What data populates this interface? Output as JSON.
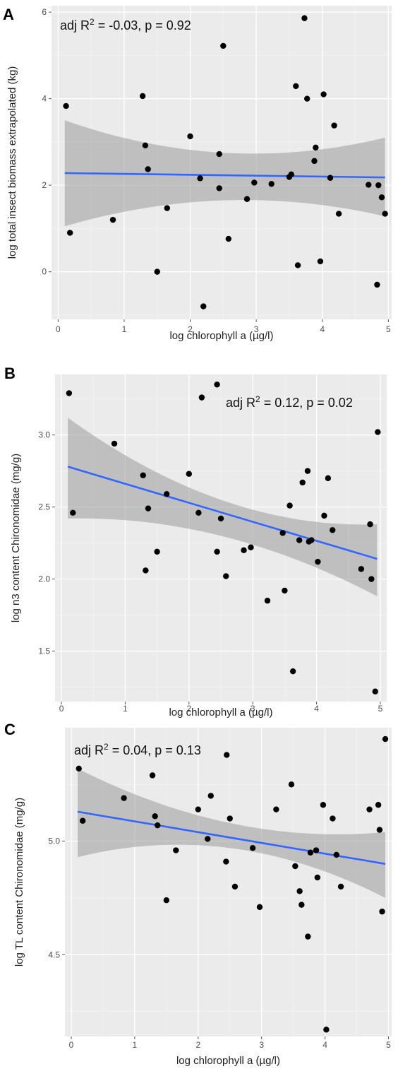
{
  "chart_data": [
    {
      "type": "scatter",
      "panel": "A",
      "xlabel": "log chlorophyll a (µg/l)",
      "ylabel": "log total insect biomass extrapolated (kg)",
      "xlim": [
        -0.1,
        5.05
      ],
      "ylim": [
        -1.1,
        6.15
      ],
      "xticks": [
        0,
        1,
        2,
        3,
        4,
        5
      ],
      "yticks": [
        0,
        2,
        4,
        6
      ],
      "annotation": {
        "prefix": "adj R",
        "sup": "2",
        "suffix": " = -0.03, p = 0.92",
        "position": "top-left"
      },
      "grid": true,
      "points": [
        [
          0.12,
          3.83
        ],
        [
          0.18,
          0.9
        ],
        [
          0.83,
          1.2
        ],
        [
          1.28,
          4.06
        ],
        [
          1.32,
          2.92
        ],
        [
          1.36,
          2.37
        ],
        [
          1.5,
          0.0
        ],
        [
          1.65,
          1.47
        ],
        [
          2.0,
          3.13
        ],
        [
          2.15,
          2.16
        ],
        [
          2.2,
          -0.8
        ],
        [
          2.44,
          2.72
        ],
        [
          2.44,
          1.93
        ],
        [
          2.5,
          5.22
        ],
        [
          2.58,
          0.76
        ],
        [
          2.86,
          1.68
        ],
        [
          2.97,
          2.06
        ],
        [
          3.23,
          2.03
        ],
        [
          3.5,
          2.19
        ],
        [
          3.53,
          2.25
        ],
        [
          3.6,
          4.29
        ],
        [
          3.63,
          0.15
        ],
        [
          3.73,
          5.86
        ],
        [
          3.77,
          4.0
        ],
        [
          3.88,
          2.56
        ],
        [
          3.9,
          2.87
        ],
        [
          3.97,
          0.24
        ],
        [
          4.02,
          4.1
        ],
        [
          4.12,
          2.17
        ],
        [
          4.18,
          3.38
        ],
        [
          4.25,
          1.34
        ],
        [
          4.7,
          2.01
        ],
        [
          4.83,
          -0.3
        ],
        [
          4.85,
          2.0
        ],
        [
          4.9,
          1.72
        ],
        [
          4.95,
          1.34
        ]
      ],
      "fit": {
        "x": [
          0.1,
          4.95
        ],
        "y": [
          2.28,
          2.18
        ],
        "band_upper": [
          3.5,
          2.75,
          3.1
        ],
        "band_lower": [
          1.05,
          1.65,
          1.28
        ],
        "band_x": [
          0.1,
          2.5,
          4.95
        ]
      }
    },
    {
      "type": "scatter",
      "panel": "B",
      "xlabel": "log chlorophyll a (µg/l)",
      "ylabel": "log n3 content Chironomidae (mg/g)",
      "xlim": [
        -0.1,
        5.1
      ],
      "ylim": [
        1.15,
        3.42
      ],
      "xticks": [
        0,
        1,
        2,
        3,
        4,
        5
      ],
      "yticks": [
        1.5,
        2.0,
        2.5,
        3.0
      ],
      "annotation": {
        "prefix": "adj R",
        "sup": "2",
        "suffix": " = 0.12, p = 0.02",
        "position": "top-right"
      },
      "grid": true,
      "points": [
        [
          0.12,
          3.29
        ],
        [
          0.18,
          2.46
        ],
        [
          0.83,
          2.94
        ],
        [
          1.28,
          2.72
        ],
        [
          1.32,
          2.06
        ],
        [
          1.36,
          2.49
        ],
        [
          1.5,
          2.19
        ],
        [
          1.65,
          2.59
        ],
        [
          2.0,
          2.73
        ],
        [
          2.15,
          2.46
        ],
        [
          2.2,
          3.26
        ],
        [
          2.44,
          2.19
        ],
        [
          2.44,
          3.35
        ],
        [
          2.5,
          2.42
        ],
        [
          2.58,
          2.02
        ],
        [
          2.86,
          2.2
        ],
        [
          2.97,
          2.22
        ],
        [
          3.23,
          1.85
        ],
        [
          3.5,
          1.92
        ],
        [
          3.47,
          2.32
        ],
        [
          3.58,
          2.51
        ],
        [
          3.63,
          1.36
        ],
        [
          3.73,
          2.27
        ],
        [
          3.78,
          2.67
        ],
        [
          3.86,
          2.75
        ],
        [
          3.88,
          2.26
        ],
        [
          3.92,
          2.27
        ],
        [
          4.02,
          2.12
        ],
        [
          4.12,
          2.44
        ],
        [
          4.18,
          2.7
        ],
        [
          4.25,
          2.34
        ],
        [
          4.7,
          2.07
        ],
        [
          4.84,
          2.38
        ],
        [
          4.86,
          2.0
        ],
        [
          4.92,
          1.22
        ],
        [
          4.96,
          3.02
        ]
      ],
      "fit": {
        "x": [
          0.1,
          4.95
        ],
        "y": [
          2.78,
          2.14
        ],
        "band_upper": [
          3.12,
          2.55,
          2.38
        ],
        "band_lower": [
          2.42,
          2.3,
          1.88
        ],
        "band_x": [
          0.1,
          2.5,
          4.95
        ]
      }
    },
    {
      "type": "scatter",
      "panel": "C",
      "xlabel": "log chlorophyll a (µg/l)",
      "ylabel": "log TL content Chironomidae (mg/g)",
      "xlim": [
        -0.1,
        5.05
      ],
      "ylim": [
        4.14,
        5.5
      ],
      "xticks": [
        0,
        1,
        2,
        3,
        4,
        5
      ],
      "yticks": [
        4.5,
        5.0
      ],
      "annotation": {
        "prefix": "adj R",
        "sup": "2",
        "suffix": " = 0.04, p = 0.13",
        "position": "top-left"
      },
      "grid": true,
      "points": [
        [
          0.12,
          5.32
        ],
        [
          0.18,
          5.09
        ],
        [
          0.83,
          5.19
        ],
        [
          1.28,
          5.29
        ],
        [
          1.32,
          5.11
        ],
        [
          1.36,
          5.07
        ],
        [
          1.5,
          4.74
        ],
        [
          1.65,
          4.96
        ],
        [
          2.0,
          5.14
        ],
        [
          2.15,
          5.01
        ],
        [
          2.2,
          5.2
        ],
        [
          2.44,
          4.91
        ],
        [
          2.45,
          5.38
        ],
        [
          2.5,
          5.1
        ],
        [
          2.58,
          4.8
        ],
        [
          2.86,
          4.97
        ],
        [
          2.97,
          4.71
        ],
        [
          3.23,
          5.14
        ],
        [
          3.47,
          5.25
        ],
        [
          3.53,
          4.89
        ],
        [
          3.6,
          4.78
        ],
        [
          3.63,
          4.72
        ],
        [
          3.73,
          4.58
        ],
        [
          3.77,
          4.95
        ],
        [
          3.86,
          4.96
        ],
        [
          3.88,
          4.84
        ],
        [
          3.97,
          5.16
        ],
        [
          4.02,
          4.17
        ],
        [
          4.12,
          5.1
        ],
        [
          4.18,
          4.94
        ],
        [
          4.25,
          4.8
        ],
        [
          4.7,
          5.14
        ],
        [
          4.84,
          5.16
        ],
        [
          4.86,
          5.05
        ],
        [
          4.9,
          4.69
        ],
        [
          4.95,
          5.45
        ]
      ],
      "fit": {
        "x": [
          0.1,
          4.95
        ],
        "y": [
          5.13,
          4.9
        ],
        "band_upper": [
          5.32,
          5.08,
          5.04
        ],
        "band_lower": [
          4.93,
          4.97,
          4.75
        ],
        "band_x": [
          0.1,
          2.5,
          4.95
        ]
      }
    }
  ],
  "style": {
    "panel_bg": "#ebebeb",
    "grid_major": "#ffffff",
    "band_fill": "#9a9a9a",
    "fit_color": "#3366ff",
    "point_color": "#000000"
  }
}
